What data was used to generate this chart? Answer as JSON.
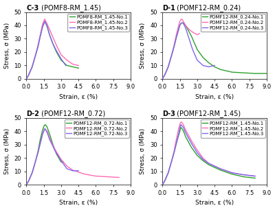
{
  "panels": [
    {
      "label": "C-3",
      "title": "(POMF8-RM_1.45)",
      "legend_labels": [
        "POMF8-RM_1.45-No.1",
        "POMF8-RM_1.45-No.2",
        "POMF8-RM_1.45-No.3"
      ],
      "colors": [
        "#2ca02c",
        "#ff69b4",
        "#7b68ee"
      ],
      "curves": [
        {
          "x": [
            0,
            0.2,
            0.5,
            0.8,
            1.0,
            1.2,
            1.4,
            1.5,
            1.55,
            1.6,
            1.8,
            2.0,
            2.3,
            2.6,
            3.0,
            3.5,
            4.0,
            4.5
          ],
          "y": [
            0,
            3,
            9,
            18,
            24,
            32,
            39,
            41,
            42.5,
            43,
            39,
            33,
            26,
            20,
            14,
            10,
            9,
            8
          ]
        },
        {
          "x": [
            0,
            0.2,
            0.5,
            0.8,
            1.0,
            1.2,
            1.4,
            1.5,
            1.55,
            1.6,
            1.8,
            2.0,
            2.3,
            2.6,
            3.0,
            3.5,
            4.0,
            4.5
          ],
          "y": [
            0,
            3,
            9,
            18,
            25,
            33,
            41,
            43,
            44.5,
            44.5,
            41,
            37,
            31,
            25,
            18,
            14,
            11,
            10
          ]
        },
        {
          "x": [
            0,
            0.2,
            0.5,
            0.8,
            1.0,
            1.2,
            1.4,
            1.5,
            1.55,
            1.6,
            1.8,
            2.0,
            2.3,
            2.6,
            3.0,
            3.4
          ],
          "y": [
            0,
            3,
            9,
            18,
            24,
            32,
            39,
            41,
            42,
            43,
            39,
            33,
            26,
            21,
            15,
            10
          ]
        }
      ]
    },
    {
      "label": "D-1",
      "title": "(POMF12-RM_0.24)",
      "legend_labels": [
        "POMF12-RM_0.24-No.1",
        "POMF12-RM_0.24-No.2",
        "POMF12-RM_0.24-No.3"
      ],
      "colors": [
        "#2ca02c",
        "#ff69b4",
        "#7b68ee"
      ],
      "curves": [
        {
          "x": [
            0,
            0.2,
            0.5,
            0.8,
            1.0,
            1.2,
            1.4,
            1.5,
            1.6,
            1.8,
            2.0,
            2.5,
            3.0,
            3.5,
            4.0,
            4.5,
            5.0,
            6.0,
            7.0,
            8.0,
            9.0
          ],
          "y": [
            0,
            3,
            9,
            18,
            24,
            31,
            37,
            40,
            41.5,
            42,
            40,
            32,
            22,
            16,
            12,
            9,
            7,
            5,
            4.5,
            4,
            4
          ]
        },
        {
          "x": [
            0,
            0.2,
            0.5,
            0.8,
            1.0,
            1.2,
            1.4,
            1.5,
            1.6,
            1.7,
            1.8,
            2.0,
            2.3,
            2.6,
            3.0,
            3.2
          ],
          "y": [
            0,
            3,
            9,
            18,
            25,
            33,
            40,
            43,
            44.5,
            44.5,
            43,
            40,
            37,
            35,
            33,
            34
          ]
        },
        {
          "x": [
            0,
            0.2,
            0.5,
            0.8,
            1.0,
            1.2,
            1.4,
            1.5,
            1.6,
            1.7,
            1.8,
            2.0,
            2.3,
            2.6,
            3.0,
            3.5,
            4.0,
            4.5
          ],
          "y": [
            0,
            3,
            9,
            18,
            24,
            31,
            37,
            40,
            41.5,
            42,
            41.5,
            38,
            30,
            22,
            14,
            10,
            9,
            10
          ]
        }
      ]
    },
    {
      "label": "D-2",
      "title": "(POMF12-RM_0.72)",
      "legend_labels": [
        "POMF12-RM_0.72-No.1",
        "POMF12-RM_0.72-No.2",
        "POMF12-RM_0.72-No.3"
      ],
      "colors": [
        "#2ca02c",
        "#ff69b4",
        "#7b68ee"
      ],
      "curves": [
        {
          "x": [
            0,
            0.2,
            0.5,
            0.8,
            1.0,
            1.2,
            1.4,
            1.5,
            1.55,
            1.65,
            1.8,
            2.0,
            2.3,
            2.6,
            3.0,
            3.2
          ],
          "y": [
            0,
            3,
            9,
            18,
            25,
            34,
            41,
            43.5,
            44.5,
            45,
            43,
            38,
            30,
            23,
            17,
            17
          ]
        },
        {
          "x": [
            0,
            0.2,
            0.5,
            0.8,
            1.0,
            1.2,
            1.4,
            1.5,
            1.55,
            1.6,
            1.8,
            2.0,
            2.5,
            3.0,
            3.5,
            4.0,
            5.0,
            6.0,
            7.0,
            8.0
          ],
          "y": [
            0,
            3,
            9,
            18,
            24,
            31,
            38,
            40,
            41.5,
            42,
            40,
            35,
            26,
            19,
            14,
            11,
            8,
            6.5,
            6,
            5.5
          ]
        },
        {
          "x": [
            0,
            0.2,
            0.5,
            0.8,
            1.0,
            1.2,
            1.4,
            1.5,
            1.55,
            1.6,
            1.8,
            2.0,
            2.5,
            3.0,
            3.5,
            4.0,
            4.5
          ],
          "y": [
            0,
            3,
            9,
            18,
            24,
            31,
            38,
            40,
            41.5,
            42,
            39,
            34,
            25,
            18,
            12,
            10.5,
            10.5
          ]
        }
      ]
    },
    {
      "label": "D-3",
      "title": "(POMF12-RM_1.45)",
      "legend_labels": [
        "POMF12-RM_1.45-No.1",
        "POMF12-RM_1.45-No.2",
        "POMF12-RM_1.45-No.3"
      ],
      "colors": [
        "#2ca02c",
        "#ff69b4",
        "#7b68ee"
      ],
      "curves": [
        {
          "x": [
            0,
            0.2,
            0.5,
            0.8,
            1.0,
            1.2,
            1.4,
            1.5,
            1.55,
            1.6,
            1.8,
            2.0,
            2.5,
            3.0,
            3.5,
            4.0,
            5.0,
            6.0,
            7.0,
            8.0
          ],
          "y": [
            0,
            3,
            9,
            18,
            24,
            31,
            37,
            40,
            42,
            43,
            40.5,
            36,
            28,
            22,
            18,
            15,
            11,
            8,
            6,
            5
          ]
        },
        {
          "x": [
            0,
            0.2,
            0.5,
            0.8,
            1.0,
            1.2,
            1.4,
            1.5,
            1.55,
            1.65,
            1.8,
            2.0,
            2.5,
            3.0,
            3.5,
            4.0,
            5.0,
            6.0,
            7.0,
            8.0
          ],
          "y": [
            0,
            3,
            9,
            18,
            25,
            34,
            42,
            45,
            46.5,
            47,
            45,
            41,
            33,
            26,
            20,
            16,
            12,
            9,
            7.5,
            6.5
          ]
        },
        {
          "x": [
            0,
            0.2,
            0.5,
            0.8,
            1.0,
            1.2,
            1.4,
            1.5,
            1.55,
            1.6,
            1.8,
            2.0,
            2.5,
            3.0,
            3.5,
            4.0,
            5.0,
            6.0,
            7.0,
            8.0
          ],
          "y": [
            0,
            3,
            9,
            18,
            24,
            31,
            38,
            42,
            44,
            45,
            43,
            39,
            31,
            24,
            19,
            16,
            12,
            9,
            7.5,
            6.5
          ]
        }
      ]
    }
  ],
  "xlim": [
    0,
    9.0
  ],
  "ylim": [
    0,
    50
  ],
  "xticks": [
    0.0,
    1.5,
    3.0,
    4.5,
    6.0,
    7.5,
    9.0
  ],
  "xtick_labels": [
    "0.0",
    "1.5",
    "3.0",
    "4.5",
    "6.0",
    "7.5",
    "9.0"
  ],
  "yticks": [
    0,
    10,
    20,
    30,
    40,
    50
  ],
  "xlabel": "Strain, ε (%)",
  "ylabel": "Stress, σ (MPa)",
  "bg_color": "#ffffff",
  "linewidth": 1.0,
  "title_fontsize": 7,
  "label_fontsize": 6.5,
  "tick_fontsize": 6,
  "legend_fontsize": 5.0
}
